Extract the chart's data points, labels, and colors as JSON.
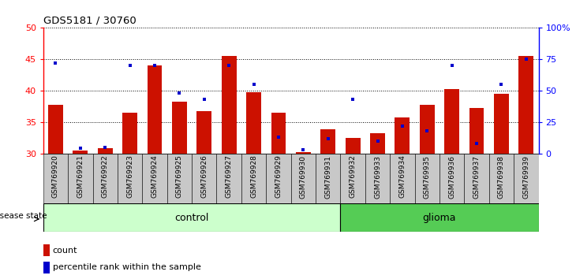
{
  "title": "GDS5181 / 30760",
  "samples": [
    "GSM769920",
    "GSM769921",
    "GSM769922",
    "GSM769923",
    "GSM769924",
    "GSM769925",
    "GSM769926",
    "GSM769927",
    "GSM769928",
    "GSM769929",
    "GSM769930",
    "GSM769931",
    "GSM769932",
    "GSM769933",
    "GSM769934",
    "GSM769935",
    "GSM769936",
    "GSM769937",
    "GSM769938",
    "GSM769939"
  ],
  "count_values": [
    37.8,
    30.5,
    30.8,
    36.5,
    44.0,
    38.3,
    36.8,
    45.5,
    39.8,
    36.5,
    30.2,
    33.8,
    32.5,
    33.2,
    35.8,
    37.8,
    40.2,
    37.3,
    39.5,
    45.5
  ],
  "percentile_values": [
    72,
    4,
    5,
    70,
    70,
    48,
    43,
    70,
    55,
    13,
    3,
    12,
    43,
    10,
    22,
    18,
    70,
    8,
    55,
    75
  ],
  "control_count": 12,
  "glioma_count": 8,
  "ylim_left": [
    30,
    50
  ],
  "yticks_left": [
    30,
    35,
    40,
    45,
    50
  ],
  "ylim_right": [
    0,
    100
  ],
  "yticks_right": [
    0,
    25,
    50,
    75,
    100
  ],
  "bar_color": "#cc1100",
  "percentile_color": "#0000cc",
  "control_bg": "#ccffcc",
  "glioma_bg": "#55cc55",
  "label_bg": "#c8c8c8",
  "grid_color": "#000000",
  "legend_count": "count",
  "legend_percentile": "percentile rank within the sample",
  "disease_state_label": "disease state",
  "control_label": "control",
  "glioma_label": "glioma"
}
